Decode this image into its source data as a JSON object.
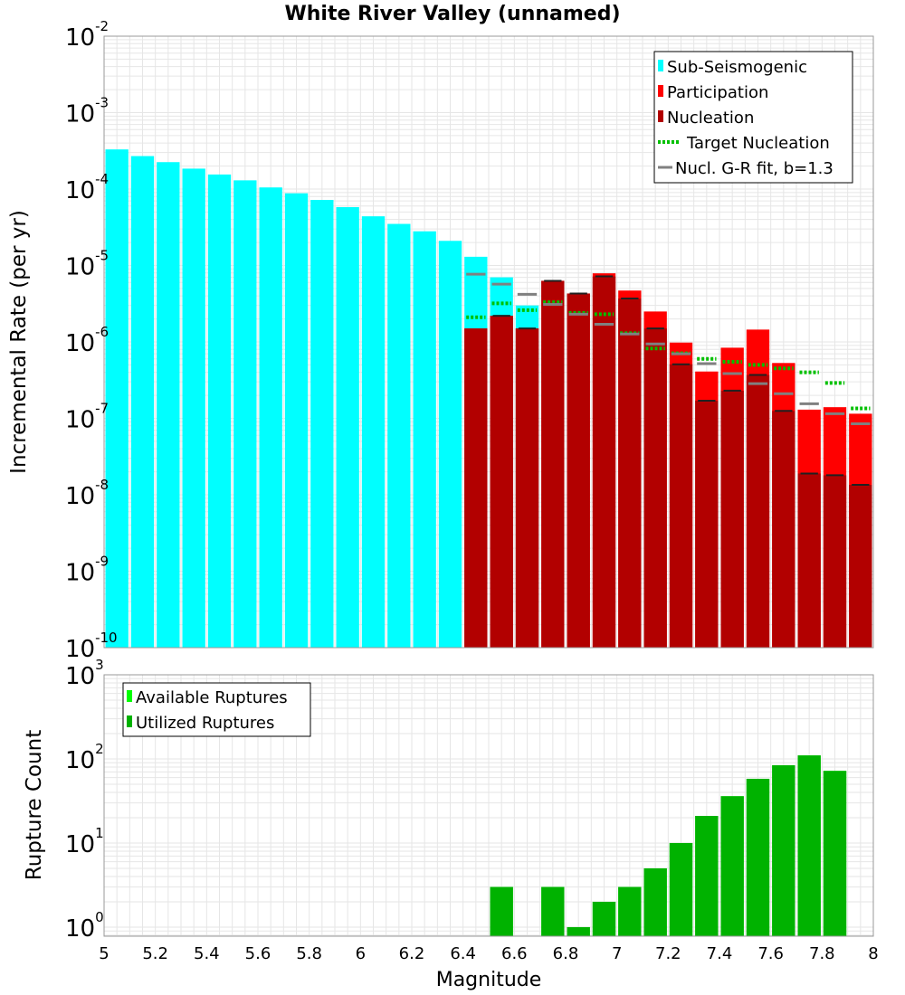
{
  "colors": {
    "sub_seismogenic": "#00FFFF",
    "participation": "#FF0000",
    "nucleation": "#B20000",
    "target_nucleation": "#00C000",
    "gr_fit": "#808080",
    "nucl_line": "#202020",
    "available": "#00FF00",
    "utilized": "#00B200",
    "grid": "#e6e6e6",
    "frame": "#999999"
  },
  "chart_data": [
    {
      "type": "bar",
      "title": "White River Valley (unnamed)",
      "xlabel": "",
      "ylabel": "Incremental Rate (per yr)",
      "xlim": [
        5,
        8
      ],
      "ylim": [
        1e-10,
        0.01
      ],
      "yscale": "log",
      "bin_width": 0.1,
      "grid": true,
      "legend_position": "top-right",
      "ytick_labels": [
        {
          "value": 1e-10,
          "base": "10",
          "exp": "-10"
        },
        {
          "value": 1e-09,
          "base": "10",
          "exp": "-9"
        },
        {
          "value": 1e-08,
          "base": "10",
          "exp": "-8"
        },
        {
          "value": 1e-07,
          "base": "10",
          "exp": "-7"
        },
        {
          "value": 1e-06,
          "base": "10",
          "exp": "-6"
        },
        {
          "value": 1e-05,
          "base": "10",
          "exp": "-5"
        },
        {
          "value": 0.0001,
          "base": "10",
          "exp": "-4"
        },
        {
          "value": 0.001,
          "base": "10",
          "exp": "-3"
        },
        {
          "value": 0.01,
          "base": "10",
          "exp": "-2"
        }
      ],
      "series": [
        {
          "name": "Sub-Seismogenic",
          "kind": "bar",
          "color_key": "sub_seismogenic",
          "x": [
            5.0,
            5.1,
            5.2,
            5.3,
            5.4,
            5.5,
            5.6,
            5.7,
            5.8,
            5.9,
            6.0,
            6.1,
            6.2,
            6.3,
            6.4,
            6.5,
            6.6
          ],
          "values": [
            0.00033,
            0.00027,
            0.000225,
            0.000185,
            0.000155,
            0.00013,
            0.000105,
            8.8e-05,
            7.2e-05,
            5.8e-05,
            4.4e-05,
            3.5e-05,
            2.8e-05,
            2.1e-05,
            1.3e-05,
            7e-06,
            3e-06
          ]
        },
        {
          "name": "Participation",
          "kind": "bar",
          "color_key": "participation",
          "x": [
            6.4,
            6.5,
            6.6,
            6.7,
            6.8,
            6.9,
            7.0,
            7.1,
            7.2,
            7.3,
            7.4,
            7.5,
            7.6,
            7.7,
            7.8,
            7.9
          ],
          "values": [
            1.5e-06,
            2.2e-06,
            1.5e-06,
            6.3e-06,
            4.3e-06,
            7.9e-06,
            4.7e-06,
            2.5e-06,
            9.8e-07,
            4.1e-07,
            8.4e-07,
            1.45e-06,
            5.3e-07,
            1.3e-07,
            1.4e-07,
            1.15e-07
          ]
        },
        {
          "name": "Nucleation",
          "kind": "bar",
          "color_key": "nucleation",
          "x": [
            6.4,
            6.5,
            6.6,
            6.7,
            6.8,
            6.9,
            7.0,
            7.1,
            7.2,
            7.3,
            7.4,
            7.5,
            7.6,
            7.7,
            7.8,
            7.9
          ],
          "values": [
            1.5e-06,
            2.2e-06,
            1.5e-06,
            6.3e-06,
            4.3e-06,
            7.2e-06,
            3.7e-06,
            1.5e-06,
            5.1e-07,
            1.7e-07,
            2.3e-07,
            3.7e-07,
            1.25e-07,
            1.9e-08,
            1.8e-08,
            1.35e-08
          ]
        },
        {
          "name": "Target Nucleation",
          "kind": "step-dotted",
          "color_key": "target_nucleation",
          "x": [
            6.4,
            6.5,
            6.6,
            6.7,
            6.8,
            6.9,
            7.0,
            7.1,
            7.2,
            7.3,
            7.4,
            7.5,
            7.6,
            7.7,
            7.8,
            7.9
          ],
          "values": [
            2.1e-06,
            3.2e-06,
            2.6e-06,
            3.3e-06,
            2.4e-06,
            2.3e-06,
            1.3e-06,
            8.2e-07,
            7.1e-07,
            6e-07,
            5.5e-07,
            5e-07,
            4.5e-07,
            4e-07,
            2.9e-07,
            1.35e-07
          ]
        },
        {
          "name": "Nucl. G-R fit, b=1.3",
          "kind": "step",
          "color_key": "gr_fit",
          "x": [
            6.4,
            6.5,
            6.6,
            6.7,
            6.8,
            6.9,
            7.0,
            7.1,
            7.2,
            7.3,
            7.4,
            7.5,
            7.6,
            7.7,
            7.8,
            7.9
          ],
          "values": [
            7.7e-06,
            5.7e-06,
            4.2e-06,
            3.1e-06,
            2.3e-06,
            1.7e-06,
            1.27e-06,
            9.4e-07,
            7e-07,
            5.2e-07,
            3.85e-07,
            2.85e-07,
            2.1e-07,
            1.55e-07,
            1.15e-07,
            8.5e-08
          ]
        }
      ],
      "legend": [
        {
          "label": "Sub-Seismogenic",
          "color_key": "sub_seismogenic",
          "symbol": "box"
        },
        {
          "label": "Participation",
          "color_key": "participation",
          "symbol": "box"
        },
        {
          "label": "Nucleation",
          "color_key": "nucleation",
          "symbol": "box"
        },
        {
          "label": "Target Nucleation",
          "color_key": "target_nucleation",
          "symbol": "dotted"
        },
        {
          "label": "Nucl. G-R fit, b=1.3",
          "color_key": "gr_fit",
          "symbol": "line"
        }
      ]
    },
    {
      "type": "bar",
      "title": "",
      "xlabel": "Magnitude",
      "ylabel": "Rupture Count",
      "xlim": [
        5,
        8
      ],
      "ylim": [
        0.78,
        1000
      ],
      "yscale": "log",
      "bin_width": 0.1,
      "grid": true,
      "legend_position": "top-left",
      "xticks": [
        "5",
        "5.2",
        "5.4",
        "5.6",
        "5.8",
        "6",
        "6.2",
        "6.4",
        "6.6",
        "6.8",
        "7",
        "7.2",
        "7.4",
        "7.6",
        "7.8",
        "8"
      ],
      "ytick_labels": [
        {
          "value": 1,
          "base": "10",
          "exp": "0"
        },
        {
          "value": 10,
          "base": "10",
          "exp": "1"
        },
        {
          "value": 100,
          "base": "10",
          "exp": "2"
        },
        {
          "value": 1000,
          "base": "10",
          "exp": "3"
        }
      ],
      "series": [
        {
          "name": "Available Ruptures",
          "kind": "bar",
          "color_key": "available",
          "x": [
            6.5,
            6.7,
            6.8,
            6.9,
            7.0,
            7.1,
            7.2,
            7.3,
            7.4,
            7.5,
            7.6,
            7.7,
            7.8
          ],
          "values": [
            3,
            3,
            1,
            2,
            3,
            5,
            10,
            21,
            36,
            58,
            84,
            110,
            72
          ]
        },
        {
          "name": "Utilized Ruptures",
          "kind": "bar",
          "color_key": "utilized",
          "x": [
            6.5,
            6.7,
            6.8,
            6.9,
            7.0,
            7.1,
            7.2,
            7.3,
            7.4,
            7.5,
            7.6,
            7.7,
            7.8
          ],
          "values": [
            3,
            3,
            1,
            2,
            3,
            5,
            10,
            21,
            36,
            58,
            84,
            110,
            72
          ]
        }
      ],
      "legend": [
        {
          "label": "Available Ruptures",
          "color_key": "available",
          "symbol": "box"
        },
        {
          "label": "Utilized Ruptures",
          "color_key": "utilized",
          "symbol": "box"
        }
      ]
    }
  ]
}
